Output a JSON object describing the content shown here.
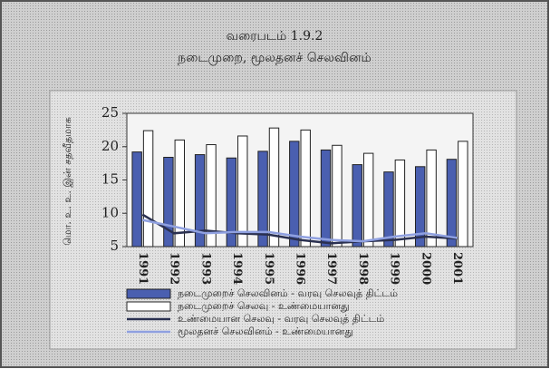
{
  "chart_data": {
    "type": "bar",
    "title": "வரைபடம் 1.9.2",
    "subtitle": "நடைமுறை, மூலதனச் செலவினம்",
    "y_label": "மொ. உ. உ. இன் சதவீதமாக",
    "categories": [
      "1991",
      "1992",
      "1993",
      "1994",
      "1995",
      "1996",
      "1997",
      "1998",
      "1999",
      "2000",
      "2001"
    ],
    "series": [
      {
        "name": "நடைமுறைச் செலவினம் - வரவு செலவுத் திட்டம்",
        "type": "bar",
        "color": "#4a5fb0",
        "values": [
          19.2,
          18.4,
          18.8,
          18.3,
          19.3,
          20.8,
          19.5,
          17.3,
          16.2,
          17.0,
          18.1
        ]
      },
      {
        "name": "நடைமுறைச் செலவு - உண்மையானது",
        "type": "bar",
        "color": "#ffffff",
        "values": [
          22.4,
          21.0,
          20.3,
          21.6,
          22.8,
          22.5,
          20.2,
          19.0,
          18.0,
          19.5,
          20.8
        ]
      },
      {
        "name": "உண்மையான செலவு - வரவு செலவுத் திட்டம்",
        "type": "line",
        "color": "#2a3050",
        "values": [
          9.8,
          7.0,
          7.4,
          7.0,
          6.8,
          6.0,
          5.5,
          5.8,
          6.0,
          6.5,
          6.2
        ]
      },
      {
        "name": "மூலதனச் செலவினம் - உண்மையானது",
        "type": "line",
        "color": "#8fa0e0",
        "values": [
          9.0,
          8.0,
          7.0,
          7.2,
          7.2,
          6.5,
          6.0,
          5.8,
          6.5,
          7.0,
          6.3
        ]
      }
    ],
    "ylim": [
      5,
      25
    ],
    "yticks": [
      5,
      10,
      15,
      20,
      25
    ]
  }
}
